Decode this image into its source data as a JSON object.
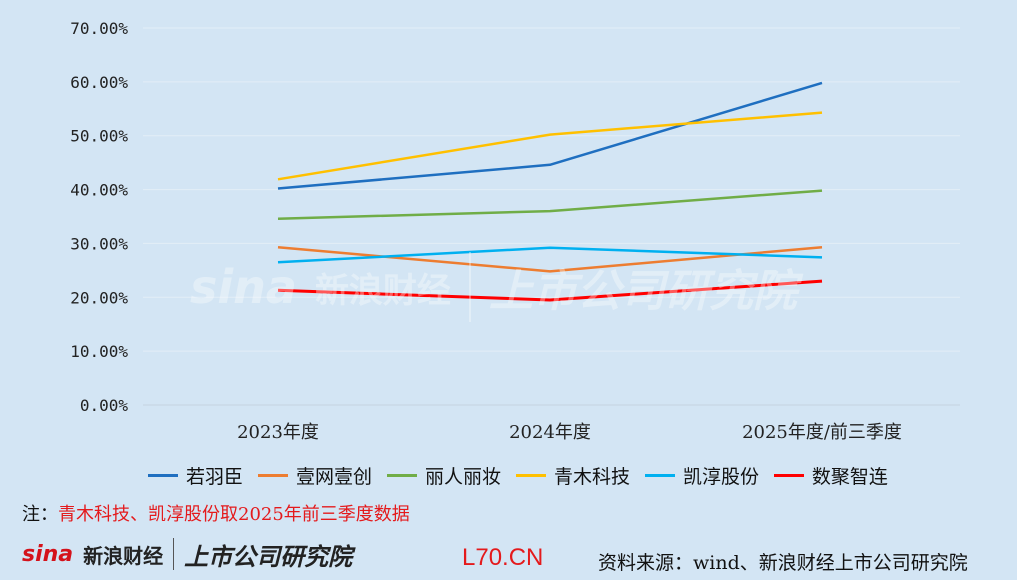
{
  "chart_data": {
    "type": "line",
    "categories": [
      "2023年度",
      "2024年度",
      "2025年度/前三季度"
    ],
    "y_ticks": [
      "0.00%",
      "10.00%",
      "20.00%",
      "30.00%",
      "40.00%",
      "50.00%",
      "60.00%",
      "70.00%"
    ],
    "ylim": [
      0,
      70
    ],
    "grid": true,
    "legend_position": "bottom",
    "series": [
      {
        "name": "若羽臣",
        "color": "#1f6fc0",
        "values": [
          40.2,
          44.6,
          59.8
        ]
      },
      {
        "name": "壹网壹创",
        "color": "#ed7d31",
        "values": [
          29.3,
          24.8,
          29.3
        ]
      },
      {
        "name": "丽人丽妆",
        "color": "#70ad47",
        "values": [
          34.6,
          36.0,
          39.8
        ]
      },
      {
        "name": "青木科技",
        "color": "#ffc000",
        "values": [
          41.9,
          50.2,
          54.3
        ]
      },
      {
        "name": "凯淳股份",
        "color": "#00b0f0",
        "values": [
          26.5,
          29.2,
          27.4
        ]
      },
      {
        "name": "数聚智连",
        "color": "#ff0000",
        "values": [
          21.3,
          19.5,
          23.0
        ]
      }
    ]
  },
  "note": {
    "prefix": "注：",
    "text": "青木科技、凯淳股份取2025年前三季度数据"
  },
  "footer": {
    "brand_sina": "sina",
    "brand_cn": "新浪财经",
    "brand_inst": "上市公司研究院",
    "code": "L70.CN",
    "source": "资料来源：wind、新浪财经上市公司研究院"
  },
  "watermark": {
    "sina": "sina",
    "cn": "新浪财经",
    "inst": "上市公司研究院"
  }
}
